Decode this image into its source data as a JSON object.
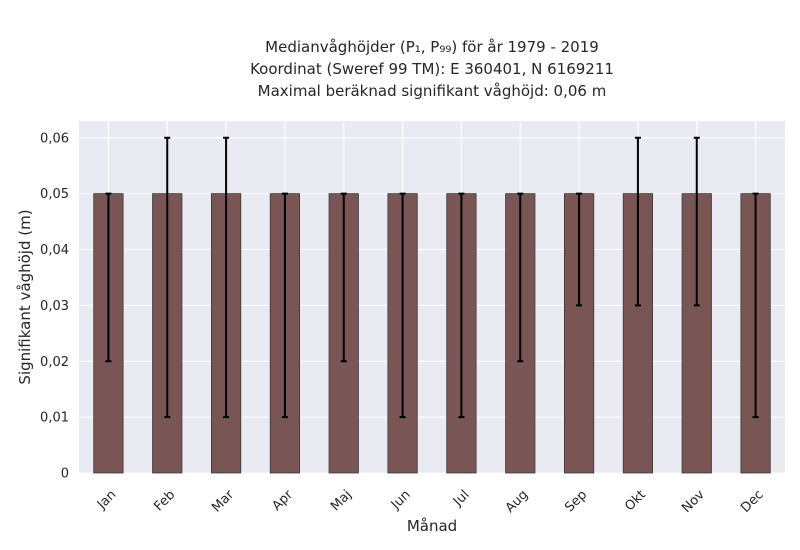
{
  "chart_data": {
    "type": "bar",
    "title_lines": [
      "Medianvåghöjder (P₁, P₉₉) för år 1979 - 2019",
      "Koordinat (Sweref 99 TM): E 360401, N 6169211",
      "Maximal beräknad signifikant våghöjd: 0,06 m"
    ],
    "xlabel": "Månad",
    "ylabel": "Signifikant våghöjd (m)",
    "categories": [
      "Jan",
      "Feb",
      "Mar",
      "Apr",
      "Maj",
      "Jun",
      "Jul",
      "Aug",
      "Sep",
      "Okt",
      "Nov",
      "Dec"
    ],
    "values": [
      0.05,
      0.05,
      0.05,
      0.05,
      0.05,
      0.05,
      0.05,
      0.05,
      0.05,
      0.05,
      0.05,
      0.05
    ],
    "error_low": [
      0.02,
      0.01,
      0.01,
      0.01,
      0.02,
      0.01,
      0.01,
      0.02,
      0.03,
      0.03,
      0.03,
      0.01
    ],
    "error_high": [
      0.05,
      0.06,
      0.06,
      0.05,
      0.05,
      0.05,
      0.05,
      0.05,
      0.05,
      0.06,
      0.06,
      0.05
    ],
    "ylim": [
      0,
      0.063
    ],
    "yticks": [
      0,
      0.01,
      0.02,
      0.03,
      0.04,
      0.05,
      0.06
    ],
    "ytick_labels": [
      "0",
      "0,01",
      "0,02",
      "0,03",
      "0,04",
      "0,05",
      "0,06"
    ],
    "grid": true,
    "colors": {
      "bar": "#7a5555",
      "bar_edge": "#3a3a3a",
      "plot_background": "#eaeaf2",
      "grid": "#ffffff",
      "error_bar": "#000000"
    }
  }
}
